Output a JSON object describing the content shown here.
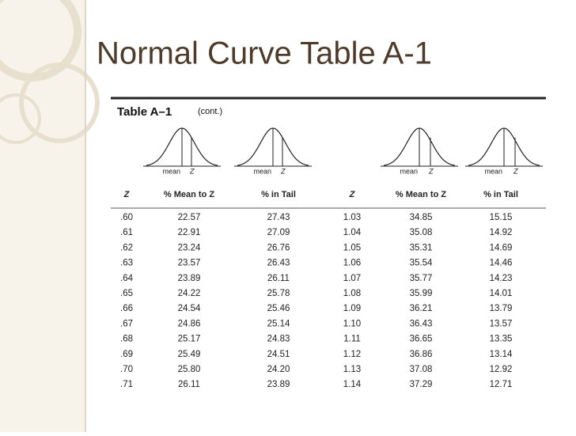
{
  "header": {
    "title": "Normal Curve Table A-1"
  },
  "table": {
    "title": "Table A–1",
    "subtitle": "(cont.)",
    "curves": [
      {
        "mean": "mean",
        "z": "Z"
      },
      {
        "mean": "mean",
        "z": "Z"
      },
      {
        "mean": "mean",
        "z": "Z"
      },
      {
        "mean": "mean",
        "z": "Z"
      }
    ],
    "columns": [
      "Z",
      "% Mean to Z",
      "% in Tail",
      "Z",
      "% Mean to Z",
      "% in Tail"
    ],
    "rows": [
      [
        ".60",
        "22.57",
        "27.43",
        "1.03",
        "34.85",
        "15.15"
      ],
      [
        ".61",
        "22.91",
        "27.09",
        "1.04",
        "35.08",
        "14.92"
      ],
      [
        ".62",
        "23.24",
        "26.76",
        "1.05",
        "35.31",
        "14.69"
      ],
      [
        ".63",
        "23.57",
        "26.43",
        "1.06",
        "35.54",
        "14.46"
      ],
      [
        ".64",
        "23.89",
        "26.11",
        "1.07",
        "35.77",
        "14.23"
      ],
      [
        ".65",
        "24.22",
        "25.78",
        "1.08",
        "35.99",
        "14.01"
      ],
      [
        ".66",
        "24.54",
        "25.46",
        "1.09",
        "36.21",
        "13.79"
      ],
      [
        ".67",
        "24.86",
        "25.14",
        "1.10",
        "36.43",
        "13.57"
      ],
      [
        ".68",
        "25.17",
        "24.83",
        "1.11",
        "36.65",
        "13.35"
      ],
      [
        ".69",
        "25.49",
        "24.51",
        "1.12",
        "36.86",
        "13.14"
      ],
      [
        ".70",
        "25.80",
        "24.20",
        "1.13",
        "37.08",
        "12.92"
      ],
      [
        ".71",
        "26.11",
        "23.89",
        "1.14",
        "37.29",
        "12.71"
      ]
    ]
  }
}
